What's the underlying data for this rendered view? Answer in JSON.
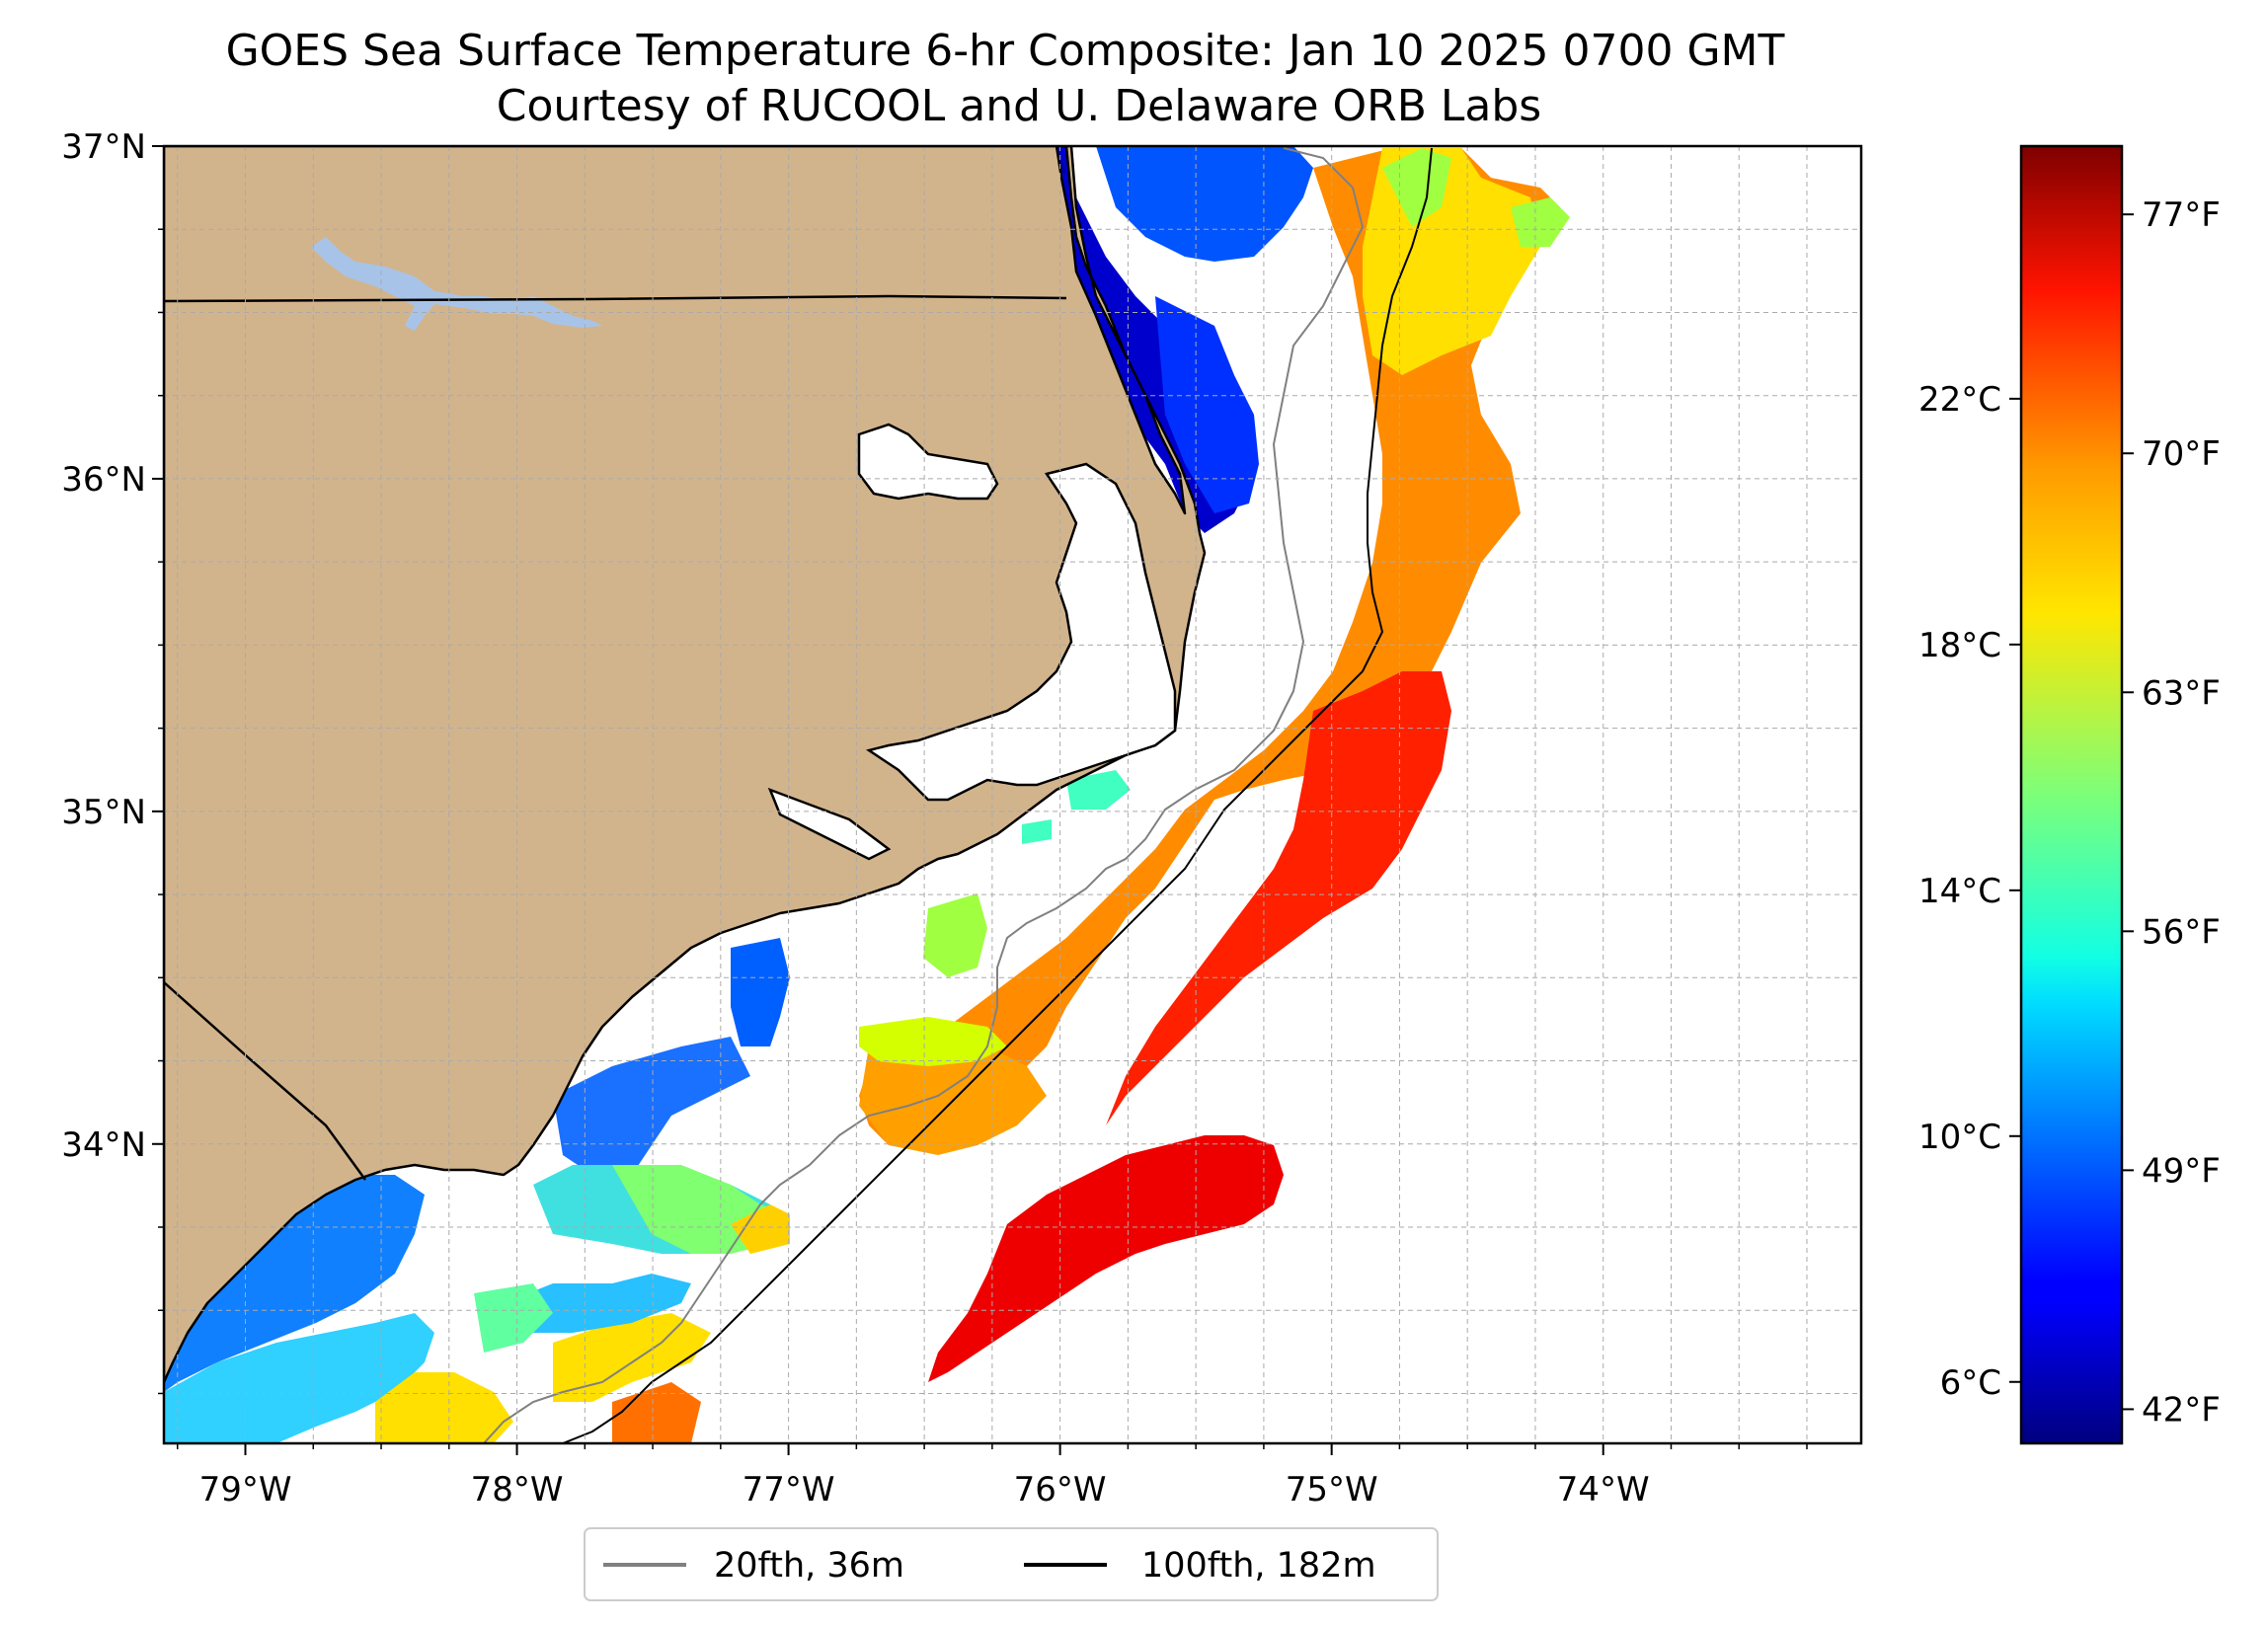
{
  "title": {
    "line1": "GOES Sea Surface Temperature 6-hr Composite: Jan 10 2025 0700 GMT",
    "line2": "Courtesy of RUCOOL and U. Delaware ORB Labs"
  },
  "map": {
    "lon_range": [
      -79.3,
      -73.05
    ],
    "lat_range": [
      33.1,
      37.0
    ],
    "lon_ticks": [
      {
        "value": -79,
        "label": "79°W"
      },
      {
        "value": -78,
        "label": "78°W"
      },
      {
        "value": -77,
        "label": "77°W"
      },
      {
        "value": -76,
        "label": "76°W"
      },
      {
        "value": -75,
        "label": "75°W"
      },
      {
        "value": -74,
        "label": "74°W"
      }
    ],
    "lat_ticks": [
      {
        "value": 34,
        "label": "34°N"
      },
      {
        "value": 35,
        "label": "35°N"
      },
      {
        "value": 36,
        "label": "36°N"
      },
      {
        "value": 37,
        "label": "37°N"
      }
    ],
    "grid": true,
    "grid_spacing_deg": 0.25,
    "colors": {
      "land": "#d2b48c",
      "water_bodies": "#a7c4e8",
      "no_data": "#ffffff",
      "coastline": "#000000",
      "isobath_20": "#808080",
      "isobath_100": "#000000"
    }
  },
  "colorbar": {
    "colormap": "jet",
    "f_range": [
      41,
      79
    ],
    "c_ticks": [
      {
        "value": 6,
        "label": "6°C"
      },
      {
        "value": 10,
        "label": "10°C"
      },
      {
        "value": 14,
        "label": "14°C"
      },
      {
        "value": 18,
        "label": "18°C"
      },
      {
        "value": 22,
        "label": "22°C"
      }
    ],
    "f_ticks": [
      {
        "value": 42,
        "label": "42°F"
      },
      {
        "value": 49,
        "label": "49°F"
      },
      {
        "value": 56,
        "label": "56°F"
      },
      {
        "value": 63,
        "label": "63°F"
      },
      {
        "value": 70,
        "label": "70°F"
      },
      {
        "value": 77,
        "label": "77°F"
      }
    ]
  },
  "legend": {
    "entries": [
      {
        "label": "20fth, 36m",
        "color": "#808080"
      },
      {
        "label": "100fth, 182m",
        "color": "#000000"
      }
    ]
  }
}
